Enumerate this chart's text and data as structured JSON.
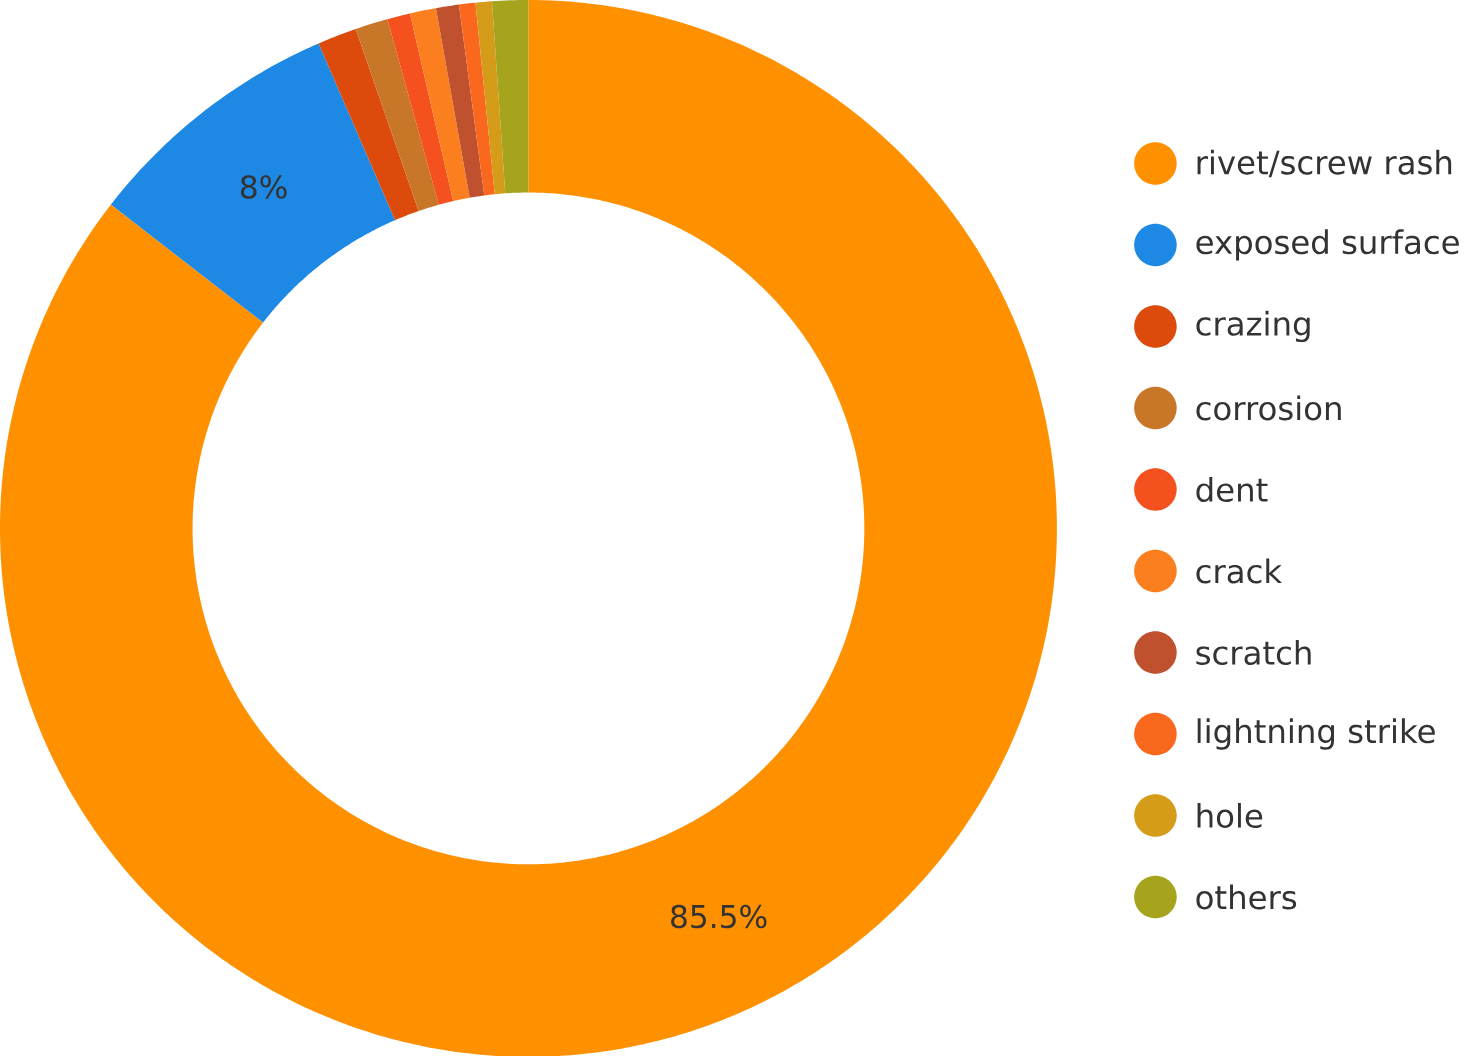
{
  "chart_data": {
    "type": "donut",
    "categories": [
      "rivet/screw rash",
      "exposed surface",
      "crazing",
      "corrosion",
      "dent",
      "crack",
      "scratch",
      "lightning strike",
      "hole",
      "others"
    ],
    "values": [
      85.5,
      8,
      1.2,
      1.0,
      0.7,
      0.8,
      0.7,
      0.5,
      0.5,
      1.1
    ],
    "colors": [
      "#ff9100",
      "#1e88e5",
      "#dd4b0c",
      "#c87628",
      "#f4511e",
      "#fb7f1f",
      "#c0512f",
      "#f9681d",
      "#d59c19",
      "#a6a31c"
    ],
    "value_labels": [
      "85.5%",
      "8%",
      null,
      null,
      null,
      null,
      null,
      null,
      null,
      null
    ],
    "legend": "right"
  }
}
